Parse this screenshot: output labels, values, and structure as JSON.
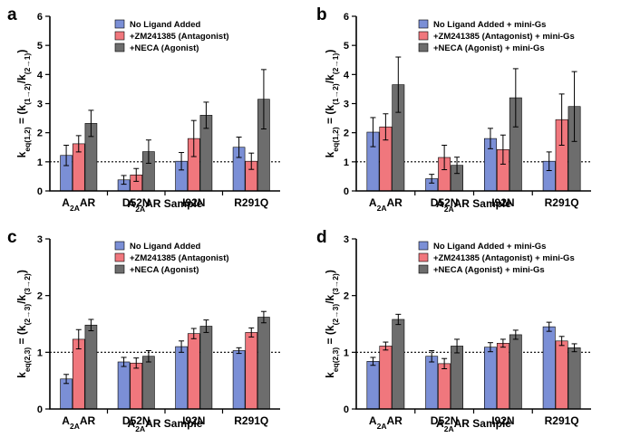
{
  "colors": {
    "no_ligand": "#7b8fd6",
    "antagonist": "#f0777d",
    "agonist": "#6d6d6d"
  },
  "chart_data": [
    {
      "type": "bar",
      "panel_label": "a",
      "categories": [
        "A2AAR",
        "D52N",
        "I92N",
        "R291Q"
      ],
      "xlabel": "A2AAR Sample",
      "ylabel": "keq(1,2) = (k(1→2)/k(2→1))",
      "ylim": [
        0,
        6
      ],
      "yticks": [
        0,
        1,
        2,
        3,
        4,
        5,
        6
      ],
      "reference_line": 1,
      "legend_position": "top-left",
      "series": [
        {
          "name": "No Ligand Added",
          "color_key": "no_ligand",
          "values": [
            1.22,
            0.38,
            1.02,
            1.5
          ],
          "errors": [
            0.35,
            0.15,
            0.3,
            0.35
          ]
        },
        {
          "name": "+ZM241385 (Antagonist)",
          "color_key": "antagonist",
          "values": [
            1.62,
            0.55,
            1.8,
            1.02
          ],
          "errors": [
            0.28,
            0.22,
            0.62,
            0.28
          ]
        },
        {
          "name": "+NECA (Agonist)",
          "color_key": "agonist",
          "values": [
            2.32,
            1.35,
            2.6,
            3.15
          ],
          "errors": [
            0.45,
            0.4,
            0.45,
            1.02
          ]
        }
      ]
    },
    {
      "type": "bar",
      "panel_label": "b",
      "categories": [
        "A2AAR",
        "D52N",
        "I92N",
        "R291Q"
      ],
      "xlabel": "A2AAR Sample",
      "ylabel": "keq(1,2) = (k(1→2)/k(2→1))",
      "ylim": [
        0,
        6
      ],
      "yticks": [
        0,
        1,
        2,
        3,
        4,
        5,
        6
      ],
      "reference_line": 1,
      "legend_position": "top-left",
      "series": [
        {
          "name": "No Ligand Added + mini-Gs",
          "color_key": "no_ligand",
          "values": [
            2.02,
            0.42,
            1.8,
            1.02
          ],
          "errors": [
            0.5,
            0.15,
            0.35,
            0.32
          ]
        },
        {
          "name": "+ZM241385 (Antagonist) + mini-Gs",
          "color_key": "antagonist",
          "values": [
            2.2,
            1.15,
            1.42,
            2.45
          ],
          "errors": [
            0.45,
            0.42,
            0.5,
            0.88
          ]
        },
        {
          "name": "+NECA (Agonist) + mini-Gs",
          "color_key": "agonist",
          "values": [
            3.65,
            0.88,
            3.2,
            2.9
          ],
          "errors": [
            0.95,
            0.28,
            1.0,
            1.2
          ]
        }
      ]
    },
    {
      "type": "bar",
      "panel_label": "c",
      "categories": [
        "A2AAR",
        "D52N",
        "I92N",
        "R291Q"
      ],
      "xlabel": "A2AAR Sample",
      "ylabel": "keq(2,3) = (k(2→3)/k(3→2))",
      "ylim": [
        0,
        3
      ],
      "yticks": [
        0,
        1,
        2,
        3
      ],
      "reference_line": 1,
      "legend_position": "top-left",
      "series": [
        {
          "name": "No Ligand Added",
          "color_key": "no_ligand",
          "values": [
            0.53,
            0.83,
            1.1,
            1.03
          ],
          "errors": [
            0.08,
            0.08,
            0.1,
            0.05
          ]
        },
        {
          "name": "+ZM241385 (Antagonist)",
          "color_key": "antagonist",
          "values": [
            1.23,
            0.81,
            1.33,
            1.35
          ],
          "errors": [
            0.17,
            0.09,
            0.09,
            0.08
          ]
        },
        {
          "name": "+NECA (Agonist)",
          "color_key": "agonist",
          "values": [
            1.48,
            0.93,
            1.46,
            1.62
          ],
          "errors": [
            0.1,
            0.1,
            0.11,
            0.1
          ]
        }
      ]
    },
    {
      "type": "bar",
      "panel_label": "d",
      "categories": [
        "A2AAR",
        "D52N",
        "I92N",
        "R291Q"
      ],
      "xlabel": "A2AAR Sample",
      "ylabel": "keq(2,3) = (k(2→3)/k(3→2))",
      "ylim": [
        0,
        3
      ],
      "yticks": [
        0,
        1,
        2,
        3
      ],
      "reference_line": 1,
      "legend_position": "top-left",
      "series": [
        {
          "name": "No Ligand Added + mini-Gs",
          "color_key": "no_ligand",
          "values": [
            0.84,
            0.93,
            1.09,
            1.45
          ],
          "errors": [
            0.07,
            0.1,
            0.08,
            0.08
          ]
        },
        {
          "name": "+ZM241385 (Antagonist) + mini-Gs",
          "color_key": "antagonist",
          "values": [
            1.11,
            0.8,
            1.16,
            1.2
          ],
          "errors": [
            0.07,
            0.09,
            0.07,
            0.08
          ]
        },
        {
          "name": "+NECA (Agonist) + mini-Gs",
          "color_key": "agonist",
          "values": [
            1.58,
            1.11,
            1.31,
            1.08
          ],
          "errors": [
            0.09,
            0.12,
            0.08,
            0.07
          ]
        }
      ]
    }
  ]
}
